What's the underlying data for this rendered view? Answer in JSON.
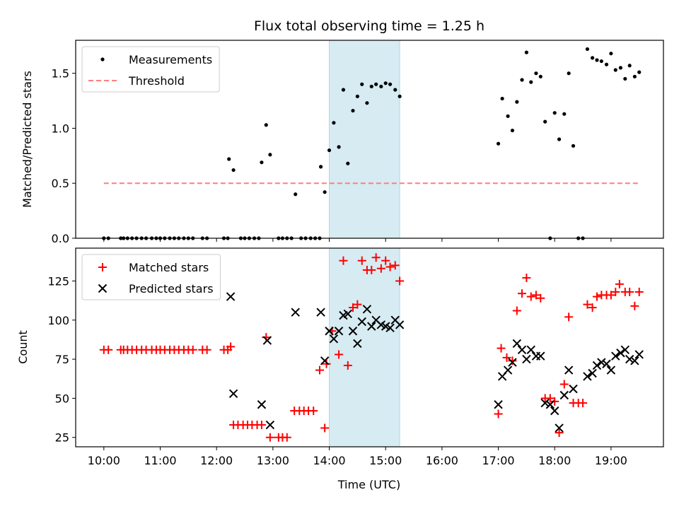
{
  "figure": {
    "title": "Flux total observing time = 1.25 h",
    "xlabel": "Time (UTC)"
  },
  "chart_data": [
    {
      "type": "scatter",
      "name": "ratio-panel",
      "ylabel": "Matched/Predicted stars",
      "xlim": [
        9.5,
        19.93
      ],
      "ylim": [
        0,
        1.8
      ],
      "yticks": [
        0.0,
        0.5,
        1.0,
        1.5
      ],
      "ytick_labels": [
        "0.0",
        "0.5",
        "1.0",
        "1.5"
      ],
      "shaded_span": [
        14.0,
        15.25
      ],
      "shade_color": "#add8e6",
      "legend": {
        "position": "top-left",
        "entries": [
          "Measurements",
          "Threshold"
        ]
      },
      "series": [
        {
          "name": "Measurements",
          "marker": "dot",
          "color": "#000000",
          "points": [
            [
              10.0,
              0
            ],
            [
              10.08,
              0
            ],
            [
              10.3,
              0
            ],
            [
              10.35,
              0
            ],
            [
              10.42,
              0
            ],
            [
              10.5,
              0
            ],
            [
              10.58,
              0
            ],
            [
              10.67,
              0
            ],
            [
              10.75,
              0
            ],
            [
              10.85,
              0
            ],
            [
              10.93,
              0
            ],
            [
              11.0,
              0
            ],
            [
              11.08,
              0
            ],
            [
              11.17,
              0
            ],
            [
              11.25,
              0
            ],
            [
              11.33,
              0
            ],
            [
              11.42,
              0
            ],
            [
              11.5,
              0
            ],
            [
              11.58,
              0
            ],
            [
              11.75,
              0
            ],
            [
              11.83,
              0
            ],
            [
              12.13,
              0
            ],
            [
              12.2,
              0
            ],
            [
              12.22,
              0.72
            ],
            [
              12.3,
              0.62
            ],
            [
              12.43,
              0
            ],
            [
              12.5,
              0
            ],
            [
              12.58,
              0
            ],
            [
              12.67,
              0
            ],
            [
              12.75,
              0
            ],
            [
              12.8,
              0.69
            ],
            [
              12.88,
              1.03
            ],
            [
              12.95,
              0.76
            ],
            [
              13.1,
              0
            ],
            [
              13.17,
              0
            ],
            [
              13.25,
              0
            ],
            [
              13.33,
              0
            ],
            [
              13.4,
              0.4
            ],
            [
              13.5,
              0
            ],
            [
              13.58,
              0
            ],
            [
              13.67,
              0
            ],
            [
              13.75,
              0
            ],
            [
              13.83,
              0
            ],
            [
              13.85,
              0.65
            ],
            [
              13.92,
              0.42
            ],
            [
              14.0,
              0.8
            ],
            [
              14.08,
              1.05
            ],
            [
              14.17,
              0.83
            ],
            [
              14.25,
              1.35
            ],
            [
              14.33,
              0.68
            ],
            [
              14.42,
              1.16
            ],
            [
              14.5,
              1.29
            ],
            [
              14.58,
              1.4
            ],
            [
              14.67,
              1.23
            ],
            [
              14.75,
              1.38
            ],
            [
              14.83,
              1.4
            ],
            [
              14.92,
              1.38
            ],
            [
              15.0,
              1.41
            ],
            [
              15.08,
              1.4
            ],
            [
              15.17,
              1.35
            ],
            [
              15.25,
              1.29
            ],
            [
              17.0,
              0.86
            ],
            [
              17.07,
              1.27
            ],
            [
              17.17,
              1.11
            ],
            [
              17.25,
              0.98
            ],
            [
              17.33,
              1.24
            ],
            [
              17.42,
              1.44
            ],
            [
              17.5,
              1.69
            ],
            [
              17.58,
              1.42
            ],
            [
              17.67,
              1.5
            ],
            [
              17.75,
              1.47
            ],
            [
              17.83,
              1.06
            ],
            [
              17.92,
              0
            ],
            [
              18.0,
              1.14
            ],
            [
              18.08,
              0.9
            ],
            [
              18.17,
              1.13
            ],
            [
              18.25,
              1.5
            ],
            [
              18.33,
              0.84
            ],
            [
              18.42,
              0
            ],
            [
              18.5,
              0
            ],
            [
              18.58,
              1.72
            ],
            [
              18.67,
              1.64
            ],
            [
              18.75,
              1.62
            ],
            [
              18.83,
              1.61
            ],
            [
              18.92,
              1.58
            ],
            [
              19.0,
              1.68
            ],
            [
              19.08,
              1.53
            ],
            [
              19.17,
              1.55
            ],
            [
              19.25,
              1.45
            ],
            [
              19.33,
              1.57
            ],
            [
              19.42,
              1.47
            ],
            [
              19.5,
              1.51
            ]
          ]
        },
        {
          "name": "Threshold",
          "style": "dashed",
          "color": "#ff7f7f",
          "points": [
            [
              10.0,
              0.5
            ],
            [
              19.5,
              0.5
            ]
          ]
        }
      ]
    },
    {
      "type": "scatter",
      "name": "count-panel",
      "ylabel": "Count",
      "xlim": [
        9.5,
        19.93
      ],
      "ylim": [
        19,
        146
      ],
      "yticks": [
        25,
        50,
        75,
        100,
        125
      ],
      "ytick_labels": [
        "25",
        "50",
        "75",
        "100",
        "125"
      ],
      "xticks": [
        10,
        11,
        12,
        13,
        14,
        15,
        16,
        17,
        18,
        19
      ],
      "xtick_labels": [
        "10:00",
        "11:00",
        "12:00",
        "13:00",
        "14:00",
        "15:00",
        "16:00",
        "17:00",
        "18:00",
        "19:00"
      ],
      "shaded_span": [
        14.0,
        15.25
      ],
      "shade_color": "#add8e6",
      "legend": {
        "position": "top-left",
        "entries": [
          "Matched stars",
          "Predicted stars"
        ]
      },
      "series": [
        {
          "name": "Matched stars",
          "marker": "plus",
          "color": "#ff0000",
          "points": [
            [
              10.0,
              81
            ],
            [
              10.08,
              81
            ],
            [
              10.3,
              81
            ],
            [
              10.35,
              81
            ],
            [
              10.42,
              81
            ],
            [
              10.5,
              81
            ],
            [
              10.58,
              81
            ],
            [
              10.67,
              81
            ],
            [
              10.75,
              81
            ],
            [
              10.85,
              81
            ],
            [
              10.93,
              81
            ],
            [
              11.0,
              81
            ],
            [
              11.08,
              81
            ],
            [
              11.17,
              81
            ],
            [
              11.25,
              81
            ],
            [
              11.33,
              81
            ],
            [
              11.42,
              81
            ],
            [
              11.5,
              81
            ],
            [
              11.58,
              81
            ],
            [
              11.75,
              81
            ],
            [
              11.83,
              81
            ],
            [
              12.13,
              81
            ],
            [
              12.2,
              81
            ],
            [
              12.25,
              83
            ],
            [
              12.3,
              33
            ],
            [
              12.38,
              33
            ],
            [
              12.47,
              33
            ],
            [
              12.55,
              33
            ],
            [
              12.63,
              33
            ],
            [
              12.72,
              33
            ],
            [
              12.8,
              33
            ],
            [
              12.88,
              89
            ],
            [
              12.95,
              25
            ],
            [
              13.1,
              25
            ],
            [
              13.17,
              25
            ],
            [
              13.25,
              25
            ],
            [
              13.38,
              42
            ],
            [
              13.47,
              42
            ],
            [
              13.55,
              42
            ],
            [
              13.63,
              42
            ],
            [
              13.72,
              42
            ],
            [
              13.83,
              68
            ],
            [
              13.92,
              31
            ],
            [
              13.95,
              72
            ],
            [
              14.05,
              93
            ],
            [
              14.17,
              78
            ],
            [
              14.25,
              138
            ],
            [
              14.33,
              71
            ],
            [
              14.42,
              108
            ],
            [
              14.5,
              110
            ],
            [
              14.58,
              138
            ],
            [
              14.67,
              132
            ],
            [
              14.75,
              132
            ],
            [
              14.83,
              140
            ],
            [
              14.92,
              133
            ],
            [
              15.0,
              138
            ],
            [
              15.08,
              134
            ],
            [
              15.17,
              135
            ],
            [
              15.25,
              125
            ],
            [
              17.0,
              40
            ],
            [
              17.05,
              82
            ],
            [
              17.15,
              76
            ],
            [
              17.25,
              74
            ],
            [
              17.33,
              106
            ],
            [
              17.42,
              117
            ],
            [
              17.5,
              127
            ],
            [
              17.58,
              115
            ],
            [
              17.67,
              116
            ],
            [
              17.75,
              114
            ],
            [
              17.83,
              50
            ],
            [
              17.92,
              50
            ],
            [
              18.0,
              48
            ],
            [
              18.08,
              28
            ],
            [
              18.17,
              59
            ],
            [
              18.25,
              102
            ],
            [
              18.33,
              47
            ],
            [
              18.42,
              47
            ],
            [
              18.5,
              47
            ],
            [
              18.58,
              110
            ],
            [
              18.67,
              108
            ],
            [
              18.75,
              115
            ],
            [
              18.83,
              116
            ],
            [
              18.92,
              116
            ],
            [
              19.0,
              116
            ],
            [
              19.08,
              118
            ],
            [
              19.15,
              123
            ],
            [
              19.25,
              118
            ],
            [
              19.33,
              118
            ],
            [
              19.42,
              109
            ],
            [
              19.5,
              118
            ]
          ]
        },
        {
          "name": "Predicted stars",
          "marker": "x",
          "color": "#000000",
          "points": [
            [
              12.25,
              115
            ],
            [
              12.3,
              53
            ],
            [
              12.8,
              46
            ],
            [
              12.9,
              87
            ],
            [
              12.95,
              33
            ],
            [
              13.4,
              105
            ],
            [
              13.85,
              105
            ],
            [
              13.92,
              74
            ],
            [
              14.0,
              93
            ],
            [
              14.08,
              88
            ],
            [
              14.17,
              93
            ],
            [
              14.25,
              103
            ],
            [
              14.33,
              104
            ],
            [
              14.42,
              93
            ],
            [
              14.5,
              85
            ],
            [
              14.58,
              99
            ],
            [
              14.67,
              107
            ],
            [
              14.75,
              96
            ],
            [
              14.83,
              100
            ],
            [
              14.92,
              97
            ],
            [
              15.0,
              96
            ],
            [
              15.08,
              95
            ],
            [
              15.17,
              100
            ],
            [
              15.25,
              97
            ],
            [
              17.0,
              46
            ],
            [
              17.07,
              64
            ],
            [
              17.17,
              68
            ],
            [
              17.25,
              73
            ],
            [
              17.33,
              85
            ],
            [
              17.42,
              81
            ],
            [
              17.5,
              75
            ],
            [
              17.58,
              81
            ],
            [
              17.67,
              77
            ],
            [
              17.75,
              77
            ],
            [
              17.83,
              47
            ],
            [
              17.92,
              46
            ],
            [
              18.0,
              42
            ],
            [
              18.08,
              31
            ],
            [
              18.17,
              52
            ],
            [
              18.25,
              68
            ],
            [
              18.33,
              56
            ],
            [
              18.58,
              64
            ],
            [
              18.67,
              66
            ],
            [
              18.75,
              71
            ],
            [
              18.83,
              73
            ],
            [
              18.92,
              72
            ],
            [
              19.0,
              68
            ],
            [
              19.08,
              77
            ],
            [
              19.17,
              79
            ],
            [
              19.25,
              81
            ],
            [
              19.33,
              75
            ],
            [
              19.42,
              74
            ],
            [
              19.5,
              78
            ]
          ]
        }
      ]
    }
  ]
}
